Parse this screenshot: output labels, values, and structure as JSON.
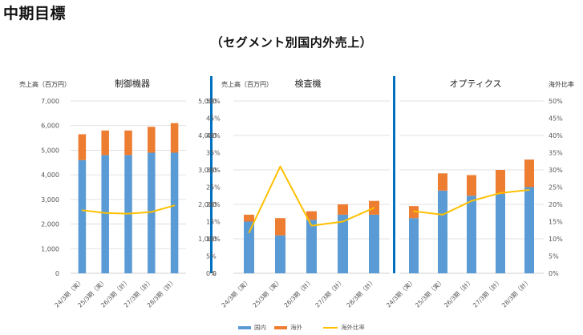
{
  "page": {
    "title": "中期目標",
    "subtitle": "（セグメント別国内外売上）"
  },
  "colors": {
    "domestic": "#5b9bd5",
    "overseas": "#ed7d31",
    "ratio": "#ffc000",
    "divider": "#0070c0",
    "grid": "#d9d9d9"
  },
  "chart_data": [
    {
      "type": "bar",
      "title": "制御機器",
      "ylabel": "売上高（百万円）",
      "y2label": "",
      "ylim": [
        0,
        7000
      ],
      "yticks": [
        "0",
        "1,000",
        "2,000",
        "3,000",
        "4,000",
        "5,000",
        "6,000",
        "7,000"
      ],
      "y2lim": [
        0,
        50
      ],
      "y2ticks": [
        "0%",
        "5%",
        "10%",
        "15%",
        "20%",
        "25%",
        "30%",
        "35%",
        "40%",
        "45%",
        "50%"
      ],
      "categories": [
        "24/3期（実）",
        "25/3期（実）",
        "26/3期（計）",
        "27/3期（計）",
        "28/3期（計）"
      ],
      "series": [
        {
          "name": "国内",
          "kind": "stacked-bar",
          "values": [
            4600,
            4800,
            4800,
            4900,
            4900
          ]
        },
        {
          "name": "海外",
          "kind": "stacked-bar",
          "values": [
            1050,
            1000,
            1000,
            1050,
            1200
          ]
        },
        {
          "name": "海外比率",
          "kind": "line",
          "axis": "right",
          "values": [
            18.3,
            17.5,
            17.3,
            17.8,
            19.7
          ]
        }
      ]
    },
    {
      "type": "bar",
      "title": "検査機",
      "ylabel": "売上高（百万円）",
      "y2label": "",
      "ylim": [
        0,
        5000
      ],
      "yticks": [
        "0",
        "1,000",
        "2,000",
        "3,000",
        "4,000",
        "5,000"
      ],
      "categories": [
        "24/3期（実）",
        "25/3期（実）",
        "26/3期（計）",
        "27/3期（計）",
        "28/3期（計）"
      ],
      "series": [
        {
          "name": "国内",
          "kind": "stacked-bar",
          "values": [
            1500,
            1100,
            1550,
            1700,
            1700
          ]
        },
        {
          "name": "海外",
          "kind": "stacked-bar",
          "values": [
            200,
            500,
            250,
            300,
            400
          ]
        },
        {
          "name": "海外比率",
          "kind": "line",
          "axis": "right",
          "values": [
            11.8,
            31.0,
            13.8,
            15.0,
            19.0
          ]
        }
      ]
    },
    {
      "type": "bar",
      "title": "オプティクス",
      "ylabel": "",
      "y2label": "海外比率",
      "ylim": [
        0,
        5000
      ],
      "y2lim": [
        0,
        50
      ],
      "y2ticks": [
        "0%",
        "5%",
        "10%",
        "15%",
        "20%",
        "25%",
        "30%",
        "35%",
        "40%",
        "45%",
        "50%"
      ],
      "categories": [
        "24/3期（実）",
        "25/3期（実）",
        "26/3期（計）",
        "27/3期（計）",
        "28/3期（計）"
      ],
      "series": [
        {
          "name": "国内",
          "kind": "stacked-bar",
          "values": [
            1600,
            2400,
            2250,
            2300,
            2500
          ]
        },
        {
          "name": "海外",
          "kind": "stacked-bar",
          "values": [
            350,
            500,
            600,
            700,
            800
          ]
        },
        {
          "name": "海外比率",
          "kind": "line",
          "axis": "right",
          "values": [
            18.0,
            17.0,
            21.0,
            23.3,
            24.2
          ]
        }
      ]
    }
  ],
  "legend": {
    "placement": "bottom",
    "items": [
      "国内",
      "海外",
      "海外比率"
    ]
  }
}
